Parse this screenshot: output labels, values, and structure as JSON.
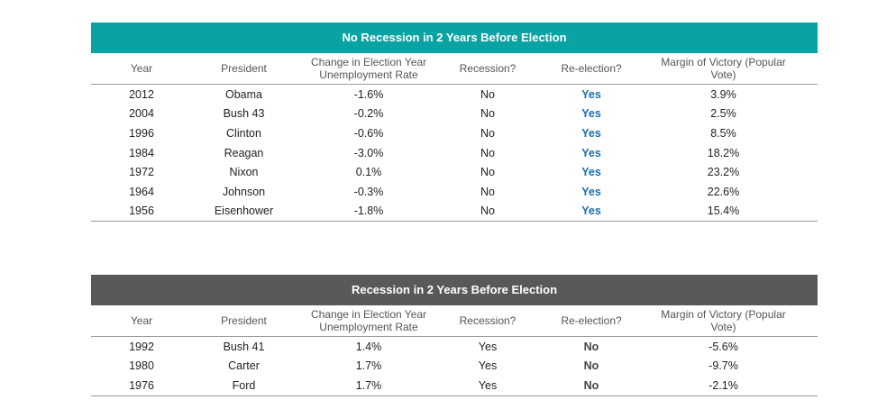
{
  "colors": {
    "teal_band": "#0aa3a4",
    "gray_band": "#58595b",
    "yes_blue": "#1a6fb0"
  },
  "columns": [
    "Year",
    "President",
    "Change in Election Year Unemployment Rate",
    "Recession?",
    "Re-election?",
    "Margin of Victory (Popular Vote)"
  ],
  "table1": {
    "title": "No Recession in 2 Years Before Election",
    "rows": [
      [
        "2012",
        "Obama",
        "-1.6%",
        "No",
        "Yes",
        "3.9%"
      ],
      [
        "2004",
        "Bush 43",
        "-0.2%",
        "No",
        "Yes",
        "2.5%"
      ],
      [
        "1996",
        "Clinton",
        "-0.6%",
        "No",
        "Yes",
        "8.5%"
      ],
      [
        "1984",
        "Reagan",
        "-3.0%",
        "No",
        "Yes",
        "18.2%"
      ],
      [
        "1972",
        "Nixon",
        "0.1%",
        "No",
        "Yes",
        "23.2%"
      ],
      [
        "1964",
        "Johnson",
        "-0.3%",
        "No",
        "Yes",
        "22.6%"
      ],
      [
        "1956",
        "Eisenhower",
        "-1.8%",
        "No",
        "Yes",
        "15.4%"
      ]
    ]
  },
  "table2": {
    "title": "Recession in 2 Years Before Election",
    "rows": [
      [
        "1992",
        "Bush 41",
        "1.4%",
        "Yes",
        "No",
        "-5.6%"
      ],
      [
        "1980",
        "Carter",
        "1.7%",
        "Yes",
        "No",
        "-9.7%"
      ],
      [
        "1976",
        "Ford",
        "1.7%",
        "Yes",
        "No",
        "-2.1%"
      ]
    ]
  }
}
